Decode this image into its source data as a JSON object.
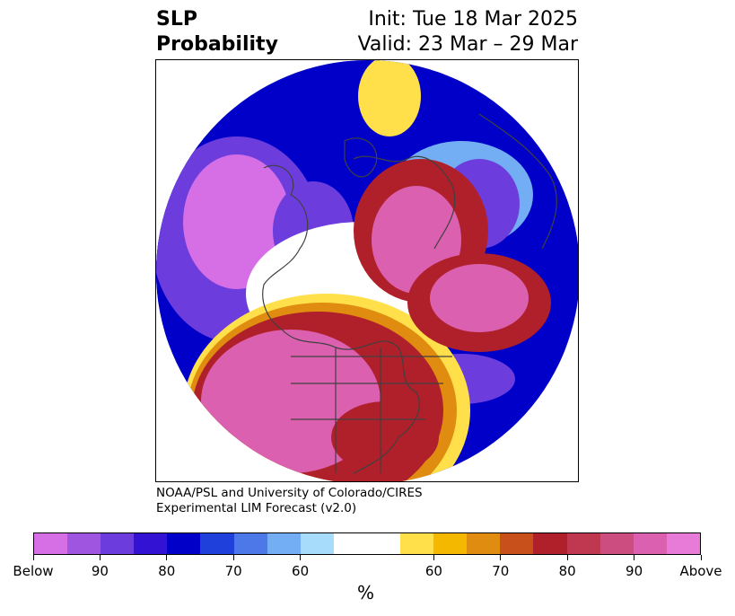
{
  "title": {
    "left_line1": "SLP",
    "left_line2": "Probability",
    "right_line1": "Init: Tue 18 Mar 2025",
    "right_line2": "Valid: 23 Mar – 29 Mar"
  },
  "credit": {
    "line1": "NOAA/PSL and University of Colorado/CIRES",
    "line2": "Experimental LIM Forecast (v2.0)"
  },
  "colorbar": {
    "colors": [
      "#d66fe6",
      "#a055e0",
      "#6c3ddc",
      "#3312d4",
      "#0000c8",
      "#2040dc",
      "#4c78e8",
      "#73aef4",
      "#a7dcfb",
      "#ffffff",
      "#ffffff",
      "#ffe04a",
      "#f5b800",
      "#e08c10",
      "#c8501a",
      "#b0202a",
      "#c03850",
      "#cc4e80",
      "#dc60b0",
      "#e87ad8"
    ],
    "tick_labels": [
      "Below",
      "90",
      "80",
      "70",
      "60",
      "60",
      "70",
      "80",
      "90",
      "Above"
    ],
    "unit": "%"
  },
  "map": {
    "projection": "north-polar-stereographic",
    "field": "Sea level pressure tercile probability",
    "colors": {
      "below_strong": "#d66fe6",
      "below_mid": "#6c3ddc",
      "below_low": "#0000c8",
      "below_weak": "#73aef4",
      "neutral": "#ffffff",
      "above_weak": "#ffe04a",
      "above_low": "#e08c10",
      "above_mid": "#b0202a",
      "above_strong": "#dc60b0",
      "coast": "#404040"
    }
  }
}
